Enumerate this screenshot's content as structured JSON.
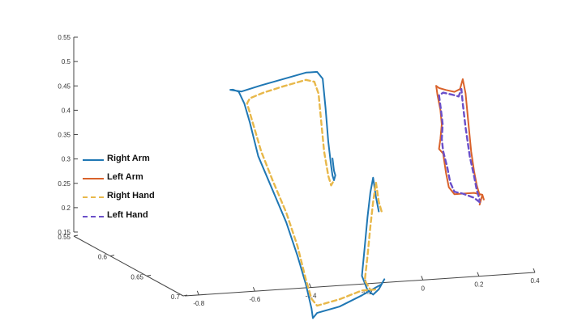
{
  "chart_data": {
    "type": "line",
    "projection": "3d",
    "title": "",
    "xlabel": "",
    "ylabel": "",
    "zlabel": "",
    "grid": false,
    "legend_placement": "middle-left",
    "axes": {
      "x": {
        "ticks": [
          -0.8,
          -0.6,
          -0.4,
          -0.2,
          0,
          0.2,
          0.4
        ],
        "tick_labels": [
          "-0.8",
          "-0.6",
          "-0.4",
          "-0.2",
          "0",
          "0.2",
          "0.4"
        ],
        "range": [
          -0.85,
          0.4
        ]
      },
      "y": {
        "ticks": [
          0.55,
          0.6,
          0.65,
          0.7
        ],
        "tick_labels": [
          "0.55",
          "0.6",
          "0.65",
          "0.7"
        ],
        "range": [
          0.55,
          0.7
        ]
      },
      "z": {
        "ticks": [
          0.15,
          0.2,
          0.25,
          0.3,
          0.35,
          0.4,
          0.45,
          0.5,
          0.55
        ],
        "tick_labels": [
          "0.15",
          "0.2",
          "0.25",
          "0.3",
          "0.35",
          "0.4",
          "0.45",
          "0.5",
          "0.55"
        ],
        "range": [
          0.15,
          0.55
        ]
      }
    },
    "series": [
      {
        "name": "Right Arm",
        "color": "#1f77b4",
        "style": "solid",
        "points": [
          [
            -0.34,
            0.62,
            0.23
          ],
          [
            -0.35,
            0.62,
            0.26
          ],
          [
            -0.36,
            0.62,
            0.3
          ],
          [
            -0.37,
            0.62,
            0.27
          ],
          [
            -0.38,
            0.62,
            0.22
          ],
          [
            -0.39,
            0.62,
            0.16
          ],
          [
            -0.4,
            0.62,
            0.1
          ],
          [
            -0.38,
            0.62,
            0.07
          ],
          [
            -0.36,
            0.62,
            0.06
          ],
          [
            -0.34,
            0.62,
            0.07
          ],
          [
            -0.32,
            0.62,
            0.09
          ],
          [
            -0.33,
            0.62,
            0.08
          ],
          [
            -0.4,
            0.62,
            0.06
          ],
          [
            -0.48,
            0.62,
            0.04
          ],
          [
            -0.56,
            0.62,
            0.03
          ],
          [
            -0.575,
            0.62,
            0.02
          ],
          [
            -0.58,
            0.62,
            0.04
          ],
          [
            -0.6,
            0.62,
            0.09
          ],
          [
            -0.63,
            0.62,
            0.15
          ],
          [
            -0.67,
            0.62,
            0.22
          ],
          [
            -0.72,
            0.62,
            0.29
          ],
          [
            -0.77,
            0.62,
            0.36
          ],
          [
            -0.8,
            0.62,
            0.43
          ],
          [
            -0.82,
            0.62,
            0.47
          ],
          [
            -0.84,
            0.62,
            0.495
          ],
          [
            -0.86,
            0.62,
            0.5
          ],
          [
            -0.87,
            0.62,
            0.5
          ],
          [
            -0.83,
            0.62,
            0.495
          ],
          [
            -0.76,
            0.62,
            0.505
          ],
          [
            -0.68,
            0.62,
            0.515
          ],
          [
            -0.6,
            0.62,
            0.525
          ],
          [
            -0.56,
            0.62,
            0.525
          ],
          [
            -0.54,
            0.62,
            0.51
          ],
          [
            -0.53,
            0.62,
            0.45
          ],
          [
            -0.52,
            0.62,
            0.38
          ],
          [
            -0.51,
            0.62,
            0.33
          ],
          [
            -0.505,
            0.62,
            0.31
          ],
          [
            -0.5,
            0.62,
            0.3
          ],
          [
            -0.495,
            0.62,
            0.31
          ],
          [
            -0.5,
            0.62,
            0.32
          ],
          [
            -0.505,
            0.62,
            0.345
          ]
        ]
      },
      {
        "name": "Left Arm",
        "color": "#d9622b",
        "style": "solid",
        "points": [
          [
            0.02,
            0.62,
            0.23
          ],
          [
            0.03,
            0.62,
            0.25
          ],
          [
            0.035,
            0.62,
            0.24
          ],
          [
            0.03,
            0.62,
            0.25
          ],
          [
            0.0,
            0.62,
            0.255
          ],
          [
            -0.04,
            0.62,
            0.255
          ],
          [
            -0.07,
            0.62,
            0.255
          ],
          [
            -0.09,
            0.62,
            0.27
          ],
          [
            -0.1,
            0.62,
            0.3
          ],
          [
            -0.11,
            0.62,
            0.34
          ],
          [
            -0.125,
            0.62,
            0.35
          ],
          [
            -0.12,
            0.62,
            0.37
          ],
          [
            -0.115,
            0.62,
            0.4
          ],
          [
            -0.12,
            0.62,
            0.43
          ],
          [
            -0.13,
            0.62,
            0.46
          ],
          [
            -0.135,
            0.62,
            0.48
          ],
          [
            -0.125,
            0.62,
            0.475
          ],
          [
            -0.1,
            0.62,
            0.47
          ],
          [
            -0.07,
            0.62,
            0.465
          ],
          [
            -0.05,
            0.62,
            0.47
          ],
          [
            -0.04,
            0.62,
            0.49
          ],
          [
            -0.03,
            0.62,
            0.46
          ],
          [
            -0.02,
            0.62,
            0.4
          ],
          [
            -0.01,
            0.62,
            0.34
          ],
          [
            0.0,
            0.62,
            0.3
          ],
          [
            0.01,
            0.62,
            0.27
          ],
          [
            0.02,
            0.62,
            0.25
          ]
        ]
      },
      {
        "name": "Right Hand",
        "color": "#e8b84a",
        "style": "dashed",
        "points": [
          [
            -0.33,
            0.62,
            0.23
          ],
          [
            -0.34,
            0.62,
            0.25
          ],
          [
            -0.35,
            0.62,
            0.29
          ],
          [
            -0.36,
            0.62,
            0.25
          ],
          [
            -0.37,
            0.62,
            0.2
          ],
          [
            -0.38,
            0.62,
            0.14
          ],
          [
            -0.39,
            0.62,
            0.09
          ],
          [
            -0.37,
            0.62,
            0.07
          ],
          [
            -0.35,
            0.62,
            0.07
          ],
          [
            -0.4,
            0.62,
            0.07
          ],
          [
            -0.48,
            0.62,
            0.055
          ],
          [
            -0.56,
            0.62,
            0.045
          ],
          [
            -0.58,
            0.62,
            0.06
          ],
          [
            -0.6,
            0.62,
            0.1
          ],
          [
            -0.63,
            0.62,
            0.17
          ],
          [
            -0.67,
            0.62,
            0.24
          ],
          [
            -0.72,
            0.62,
            0.31
          ],
          [
            -0.76,
            0.62,
            0.37
          ],
          [
            -0.79,
            0.62,
            0.43
          ],
          [
            -0.81,
            0.62,
            0.47
          ],
          [
            -0.8,
            0.62,
            0.48
          ],
          [
            -0.75,
            0.62,
            0.49
          ],
          [
            -0.68,
            0.62,
            0.5
          ],
          [
            -0.6,
            0.62,
            0.51
          ],
          [
            -0.57,
            0.62,
            0.505
          ],
          [
            -0.555,
            0.62,
            0.48
          ],
          [
            -0.545,
            0.62,
            0.42
          ],
          [
            -0.535,
            0.62,
            0.36
          ],
          [
            -0.52,
            0.62,
            0.31
          ],
          [
            -0.51,
            0.62,
            0.29
          ],
          [
            -0.5,
            0.62,
            0.3
          ]
        ]
      },
      {
        "name": "Left Hand",
        "color": "#6a4fc9",
        "style": "dashed",
        "points": [
          [
            0.02,
            0.62,
            0.235
          ],
          [
            0.0,
            0.62,
            0.245
          ],
          [
            -0.04,
            0.62,
            0.255
          ],
          [
            -0.07,
            0.62,
            0.26
          ],
          [
            -0.085,
            0.62,
            0.28
          ],
          [
            -0.095,
            0.62,
            0.31
          ],
          [
            -0.11,
            0.62,
            0.345
          ],
          [
            -0.115,
            0.62,
            0.37
          ],
          [
            -0.112,
            0.62,
            0.4
          ],
          [
            -0.118,
            0.62,
            0.43
          ],
          [
            -0.125,
            0.62,
            0.46
          ],
          [
            -0.11,
            0.62,
            0.465
          ],
          [
            -0.08,
            0.62,
            0.46
          ],
          [
            -0.055,
            0.62,
            0.455
          ],
          [
            -0.045,
            0.62,
            0.47
          ],
          [
            -0.04,
            0.62,
            0.44
          ],
          [
            -0.03,
            0.62,
            0.39
          ],
          [
            -0.015,
            0.62,
            0.33
          ],
          [
            0.0,
            0.62,
            0.29
          ],
          [
            0.01,
            0.62,
            0.26
          ],
          [
            0.02,
            0.62,
            0.24
          ]
        ]
      }
    ]
  }
}
